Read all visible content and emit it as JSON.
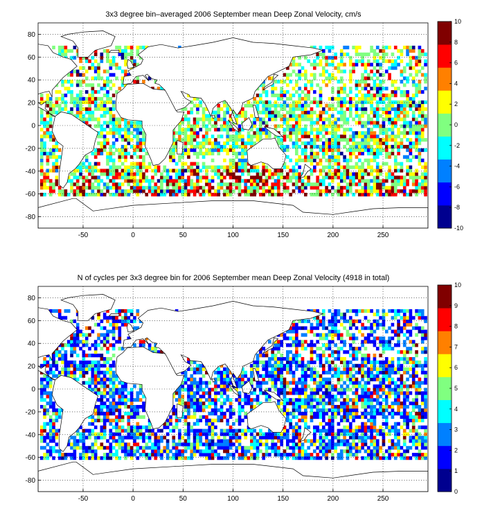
{
  "figure": {
    "palette": [
      "#00008f",
      "#0000ff",
      "#0080ff",
      "#00ffff",
      "#80ff80",
      "#ffff00",
      "#ff8000",
      "#ff0000",
      "#800000"
    ],
    "land_color": "#ffffff",
    "coast_color": "#000000"
  },
  "chart_data": [
    {
      "type": "heatmap",
      "title": "3x3 degree bin–averaged 2006 September mean Deep Zonal Velocity, cm/s",
      "xlabel": "",
      "ylabel": "",
      "xlim": [
        -95,
        295
      ],
      "ylim": [
        -90,
        90
      ],
      "xticks": [
        -50,
        0,
        50,
        100,
        150,
        200,
        250
      ],
      "yticks": [
        -80,
        -60,
        -40,
        -20,
        0,
        20,
        40,
        60,
        80
      ],
      "grid": true,
      "grid_style": "dotted",
      "bin_size_deg": 3,
      "colorbar": {
        "min": -10,
        "max": 10,
        "ticks": [
          -10,
          -8,
          -6,
          -4,
          -2,
          0,
          2,
          4,
          6,
          8,
          10
        ],
        "colormap": "jet",
        "placement": "right"
      },
      "seed": 7,
      "lat_range_of_data": [
        -62,
        68
      ],
      "value_distribution": "mostly near 0 (green-cyan), sparse strong positive in Southern Ocean (40S-60S) and equatorial band"
    },
    {
      "type": "heatmap",
      "title": "N of cycles per 3x3 degree bin for 2006 September mean Deep Zonal Velocity (4918 in total)",
      "xlabel": "",
      "ylabel": "",
      "xlim": [
        -95,
        295
      ],
      "ylim": [
        -90,
        90
      ],
      "xticks": [
        -50,
        0,
        50,
        100,
        150,
        200,
        250
      ],
      "yticks": [
        -80,
        -60,
        -40,
        -20,
        0,
        20,
        40,
        60,
        80
      ],
      "grid": true,
      "grid_style": "dotted",
      "bin_size_deg": 3,
      "colorbar": {
        "min": 0,
        "max": 10,
        "ticks": [
          0,
          1,
          2,
          3,
          4,
          5,
          6,
          7,
          8,
          9,
          10
        ],
        "colormap": "jet",
        "placement": "right"
      },
      "seed": 23,
      "lat_range_of_data": [
        -62,
        68
      ],
      "value_distribution": "counts mostly 1-3 (blue), some 4-6, few up to 10"
    }
  ]
}
